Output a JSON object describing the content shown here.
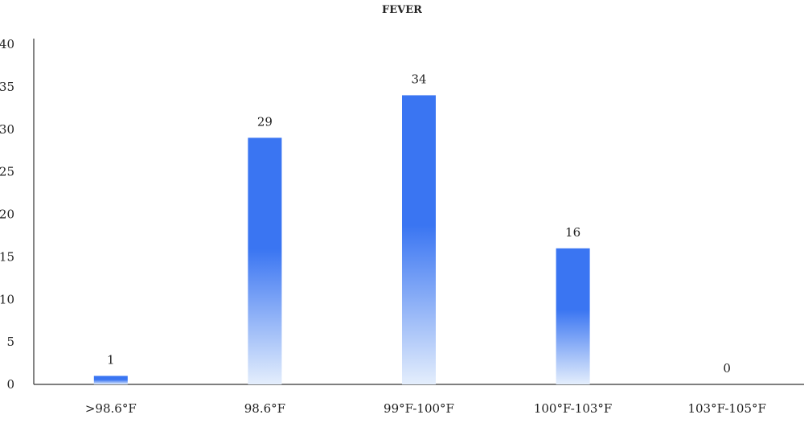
{
  "chart_data": {
    "type": "bar",
    "title": "FEVER",
    "xlabel": "",
    "ylabel": "",
    "categories": [
      ">98.6°F",
      "98.6°F",
      "99°F-100°F",
      "100°F-103°F",
      "103°F-105°F"
    ],
    "values": [
      1,
      29,
      34,
      16,
      0
    ],
    "data_labels": [
      "1",
      "29",
      "34",
      "16",
      "0"
    ],
    "ylim": [
      0,
      40
    ],
    "yticks": [
      0,
      5,
      10,
      15,
      20,
      25,
      30,
      35,
      40
    ],
    "ytick_labels": [
      "0",
      "5",
      "10",
      "15",
      "20",
      "25",
      "30",
      "35",
      "40"
    ],
    "grid": false,
    "legend": "none",
    "bar_color_top": "#3a75f2",
    "bar_color_bottom": "#e4eefc"
  }
}
